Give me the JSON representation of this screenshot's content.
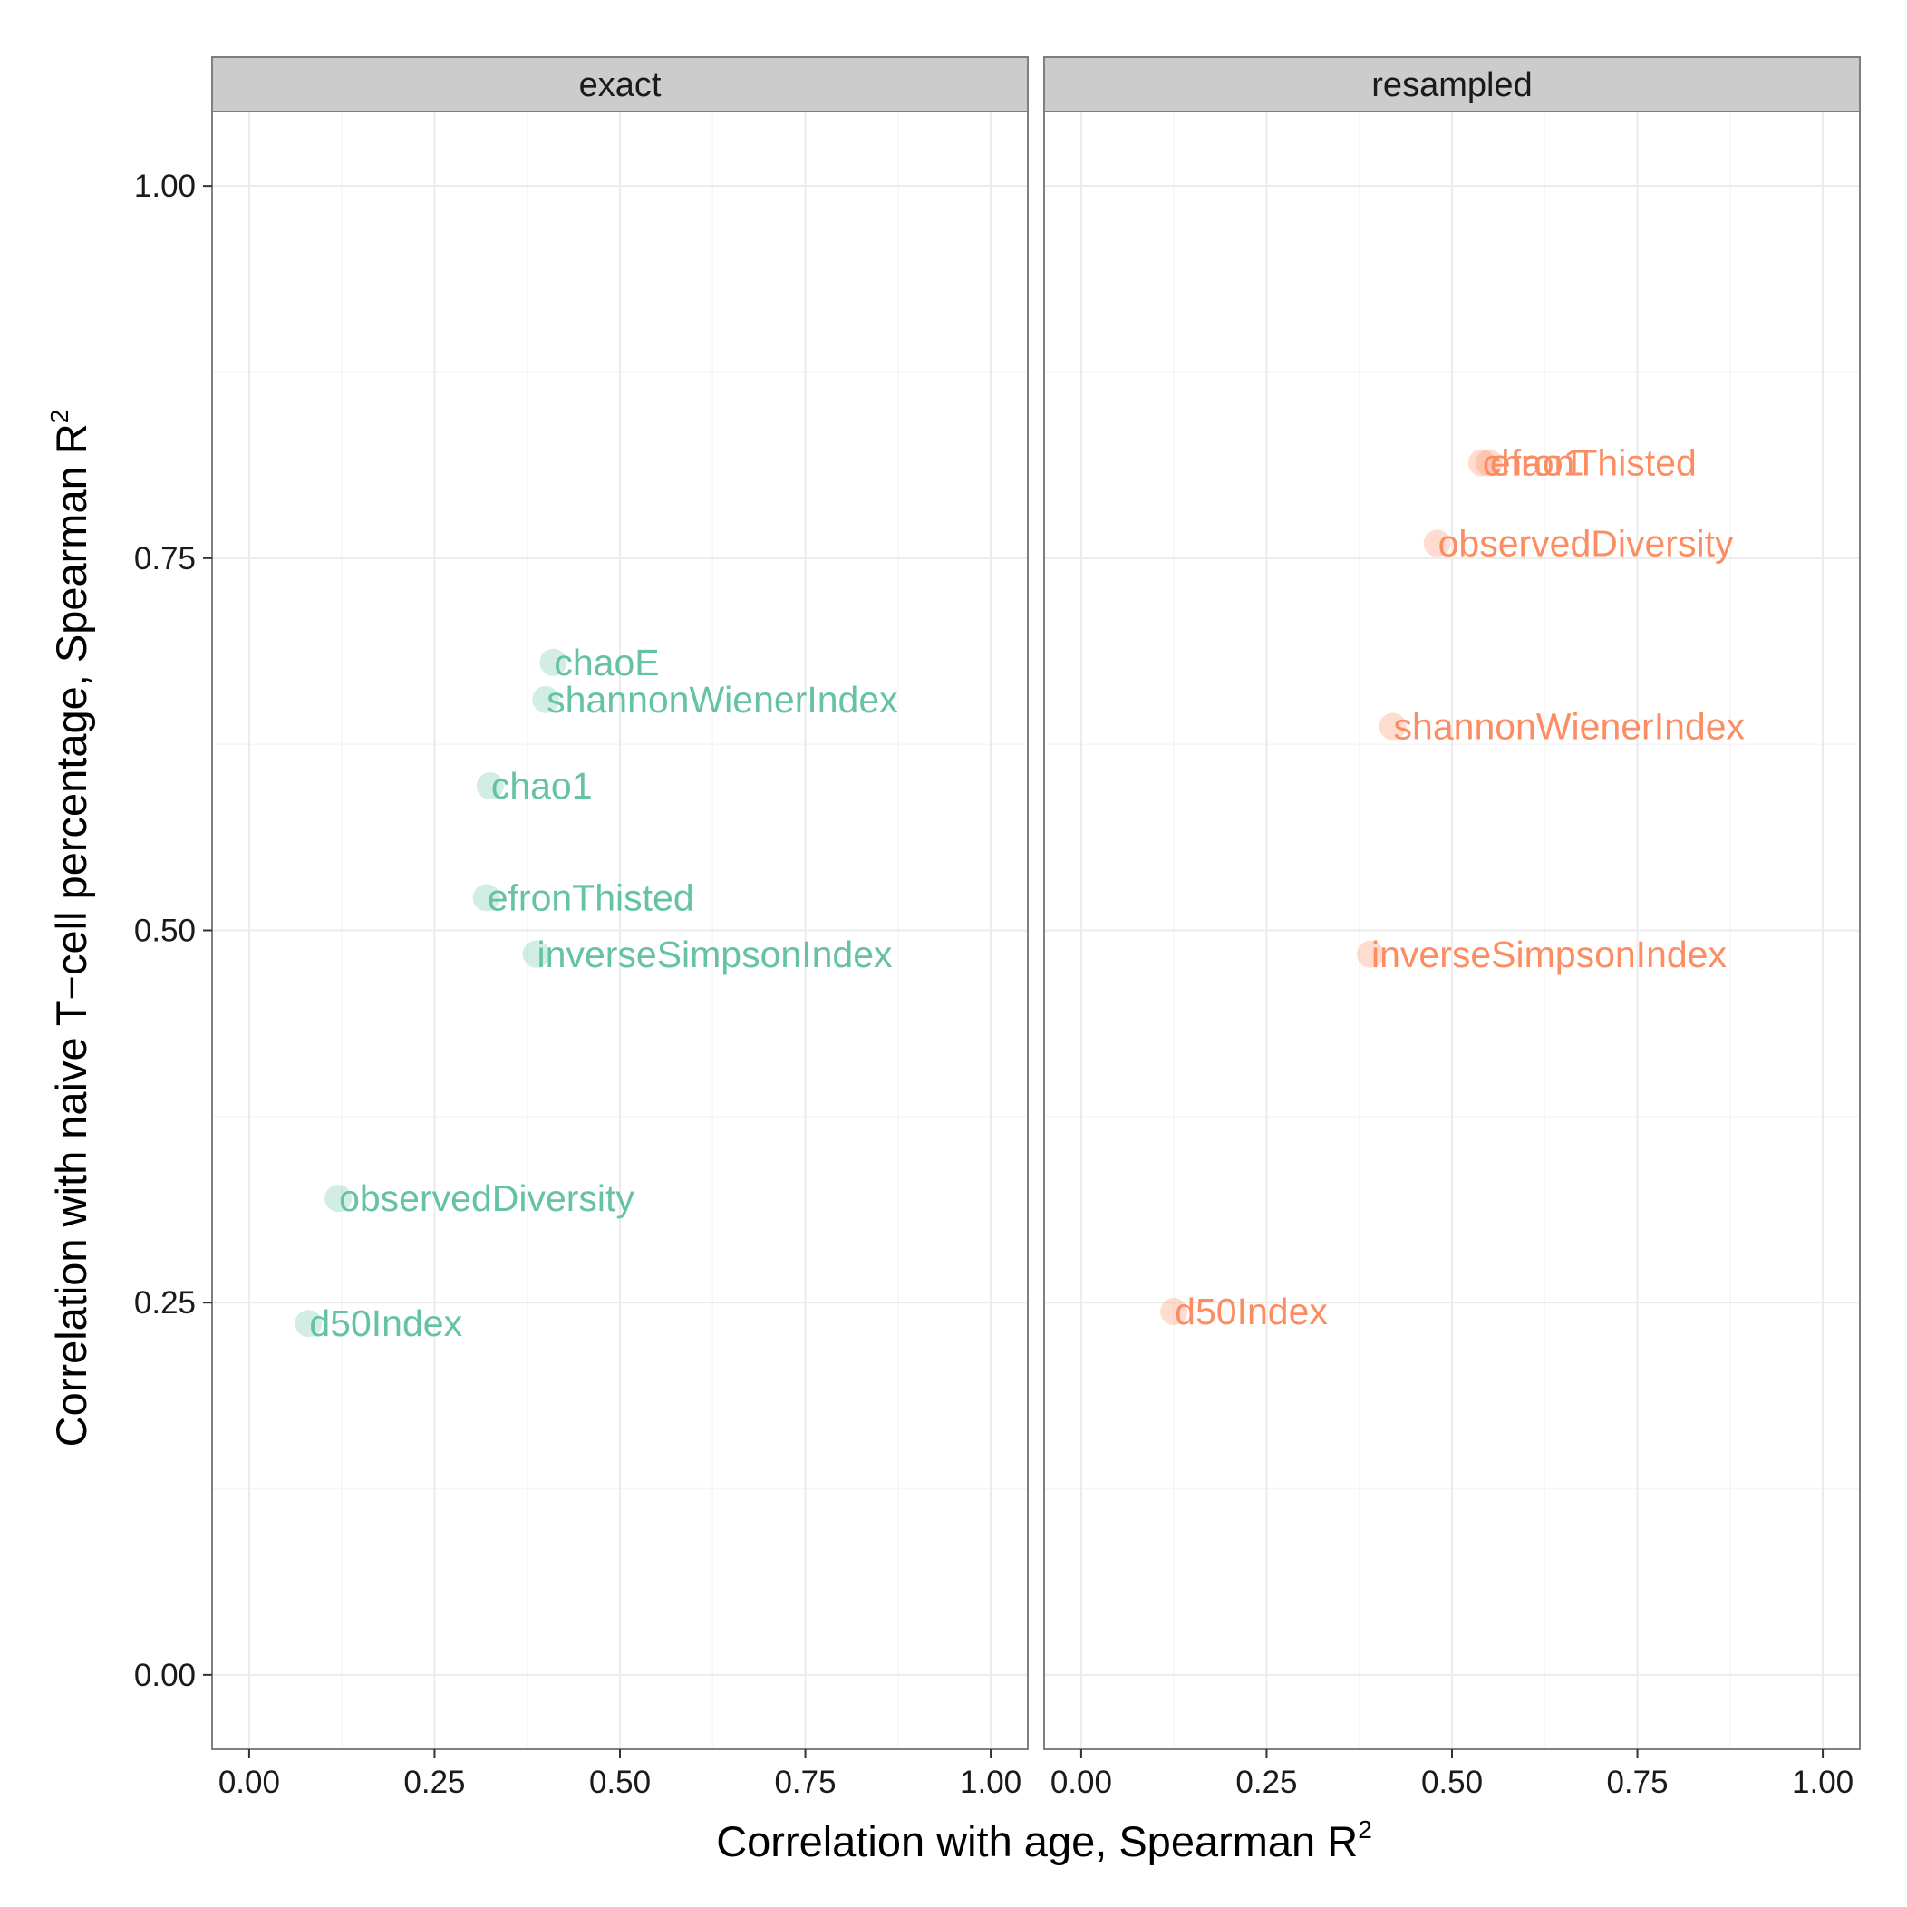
{
  "chart_data": {
    "type": "scatter",
    "ylabel": "Correlation with naive T−cell percentage, Spearman R",
    "ylabel_sup": "2",
    "xlabel": "Correlation with age, Spearman R",
    "xlabel_sup": "2",
    "xlim": [
      -0.05,
      1.05
    ],
    "ylim": [
      -0.05,
      1.05
    ],
    "x_ticks": [
      "0.00",
      "0.25",
      "0.50",
      "0.75",
      "1.00"
    ],
    "y_ticks": [
      "0.00",
      "0.25",
      "0.50",
      "0.75",
      "1.00"
    ],
    "grid": true,
    "legend": "none",
    "panels": [
      {
        "name": "exact",
        "color": "#66c2a5",
        "points": [
          {
            "label": "chaoE",
            "x": 0.41,
            "y": 0.68
          },
          {
            "label": "shannonWienerIndex",
            "x": 0.4,
            "y": 0.655
          },
          {
            "label": "chao1",
            "x": 0.325,
            "y": 0.597
          },
          {
            "label": "efronThisted",
            "x": 0.32,
            "y": 0.522
          },
          {
            "label": "inverseSimpsonIndex",
            "x": 0.387,
            "y": 0.484
          },
          {
            "label": "observedDiversity",
            "x": 0.12,
            "y": 0.32
          },
          {
            "label": "d50Index",
            "x": 0.08,
            "y": 0.236
          }
        ]
      },
      {
        "name": "resampled",
        "color": "#fc8d62",
        "points": [
          {
            "label": "chao1",
            "x": 0.54,
            "y": 0.814
          },
          {
            "label": "efronThisted",
            "x": 0.55,
            "y": 0.814
          },
          {
            "label": "observedDiversity",
            "x": 0.48,
            "y": 0.76
          },
          {
            "label": "shannonWienerIndex",
            "x": 0.42,
            "y": 0.637
          },
          {
            "label": "inverseSimpsonIndex",
            "x": 0.39,
            "y": 0.484
          },
          {
            "label": "d50Index",
            "x": 0.125,
            "y": 0.244
          }
        ]
      }
    ]
  }
}
